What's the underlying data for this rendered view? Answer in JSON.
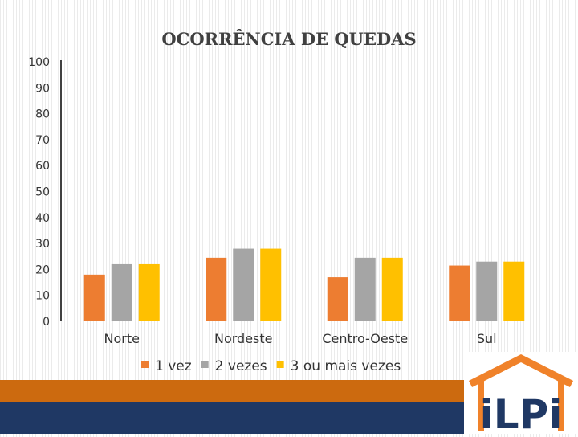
{
  "chart_data": {
    "type": "bar",
    "title": "OCORRÊNCIA DE QUEDAS",
    "categories": [
      "Norte",
      "Nordeste",
      "Centro-Oeste",
      "Sul"
    ],
    "series": [
      {
        "name": "1 vez",
        "color": "#ed7d31",
        "values": [
          18,
          24.5,
          17,
          21.5
        ]
      },
      {
        "name": "2 vezes",
        "color": "#a5a5a5",
        "values": [
          22,
          28,
          24.5,
          23
        ]
      },
      {
        "name": "3 ou mais vezes",
        "color": "#ffc000",
        "values": [
          22,
          28,
          24.5,
          23
        ]
      }
    ],
    "ylim": [
      0,
      100
    ],
    "yticks": [
      "0",
      "10",
      "20",
      "30",
      "40",
      "50",
      "60",
      "70",
      "80",
      "90",
      "100"
    ],
    "xlabel": "",
    "ylabel": "",
    "grid": false,
    "legend_position": "bottom"
  },
  "logo": {
    "text": "iLPi",
    "colors": {
      "roof": "#f0822a",
      "text": "#1f3864"
    }
  }
}
